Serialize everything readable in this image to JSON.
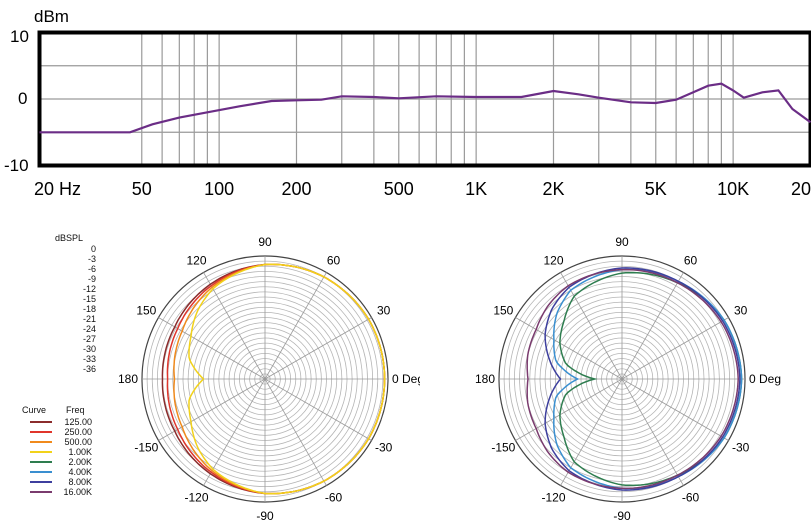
{
  "frequency_response": {
    "unit_label": "dBm",
    "y_ticks": [
      "10",
      "0",
      "-10"
    ],
    "x_ticks": [
      "20  Hz",
      "50",
      "100",
      "200",
      "500",
      "1K",
      "2K",
      "5K",
      "10K",
      "20"
    ]
  },
  "polar": {
    "db_title": "dBSPL",
    "db_scale": [
      "0",
      "-3",
      "-6",
      "-9",
      "-12",
      "-15",
      "-18",
      "-21",
      "-24",
      "-27",
      "-30",
      "-33",
      "-36"
    ],
    "angle_labels": {
      "a90": "90",
      "a60": "60",
      "a30": "30",
      "a0": "0 Deg",
      "am30": "-30",
      "am60": "-60",
      "am90": "-90",
      "am120": "-120",
      "am150": "-150",
      "a180": "180",
      "a150": "150",
      "a120": "120"
    }
  },
  "legend": {
    "curve_header": "Curve",
    "freq_header": "Freq",
    "items": [
      {
        "freq": "125.00",
        "color": "#8b2c2c"
      },
      {
        "freq": "250.00",
        "color": "#e0352b"
      },
      {
        "freq": "500.00",
        "color": "#f08a1c"
      },
      {
        "freq": "1.00K",
        "color": "#f2d21a"
      },
      {
        "freq": "2.00K",
        "color": "#2e7d4f"
      },
      {
        "freq": "4.00K",
        "color": "#3a8fd0"
      },
      {
        "freq": "8.00K",
        "color": "#3d3f9e"
      },
      {
        "freq": "16.00K",
        "color": "#7a3b6e"
      }
    ]
  },
  "chart_data": [
    {
      "type": "line",
      "ylabel": "dBm",
      "xscale": "log",
      "xlim": [
        20,
        20000
      ],
      "ylim": [
        -10,
        10
      ],
      "grid": true,
      "series": [
        {
          "color": "#6b2d86",
          "x": [
            20,
            30,
            45,
            55,
            70,
            90,
            120,
            160,
            200,
            250,
            300,
            400,
            500,
            700,
            1000,
            1500,
            2000,
            2500,
            3000,
            4000,
            5000,
            6000,
            7000,
            8000,
            9000,
            10000,
            11000,
            13000,
            15000,
            17000,
            20000
          ],
          "y": [
            -5,
            -5,
            -5,
            -3.8,
            -2.8,
            -2,
            -1.1,
            -0.3,
            -0.2,
            -0.1,
            0.4,
            0.3,
            0.1,
            0.4,
            0.3,
            0.3,
            1.2,
            0.7,
            0.2,
            -0.5,
            -0.6,
            -0.1,
            1,
            2,
            2.3,
            1.3,
            0.2,
            1,
            1.3,
            -1.5,
            -3.5
          ]
        }
      ]
    },
    {
      "type": "polar",
      "r_range_db": [
        -36,
        0
      ],
      "angle_range_deg": [
        -180,
        180
      ],
      "series": [
        {
          "name": "125.00",
          "color": "#8b2c2c",
          "angles": [
            0,
            30,
            60,
            90,
            120,
            150,
            180,
            -150,
            -120,
            -90,
            -60,
            -30
          ],
          "db": [
            -1,
            -1,
            -1.5,
            -2.5,
            -4,
            -5.5,
            -6,
            -5.5,
            -4,
            -2.5,
            -1.5,
            -1
          ]
        },
        {
          "name": "250.00",
          "color": "#e0352b",
          "angles": [
            0,
            30,
            60,
            90,
            120,
            150,
            180,
            -150,
            -120,
            -90,
            -60,
            -30
          ],
          "db": [
            -1,
            -1,
            -1.5,
            -2.5,
            -4.5,
            -6.5,
            -7.5,
            -6.5,
            -4.5,
            -2.5,
            -1.5,
            -1
          ]
        },
        {
          "name": "500.00",
          "color": "#f08a1c",
          "angles": [
            0,
            30,
            60,
            90,
            120,
            150,
            180,
            -150,
            -120,
            -90,
            -60,
            -30
          ],
          "db": [
            -1,
            -1,
            -1.5,
            -2.5,
            -5,
            -8,
            -9.5,
            -8,
            -5,
            -2.5,
            -1.5,
            -1
          ]
        },
        {
          "name": "1.00K",
          "color": "#f2d21a",
          "angles": [
            0,
            30,
            60,
            90,
            120,
            135,
            150,
            165,
            180,
            -165,
            -150,
            -135,
            -120,
            -90,
            -60,
            -30
          ],
          "db": [
            -1,
            -1,
            -1.5,
            -2.5,
            -5.5,
            -8,
            -11,
            -13,
            -18,
            -13,
            -11,
            -8,
            -5.5,
            -2.5,
            -1.5,
            -1
          ]
        }
      ]
    },
    {
      "type": "polar",
      "r_range_db": [
        -36,
        0
      ],
      "angle_range_deg": [
        -180,
        180
      ],
      "series": [
        {
          "name": "2.00K",
          "color": "#2e7d4f",
          "angles": [
            0,
            30,
            60,
            90,
            120,
            135,
            150,
            165,
            180,
            -165,
            -150,
            -135,
            -120,
            -90,
            -60,
            -30
          ],
          "db": [
            -1,
            -1.5,
            -3.5,
            -5,
            -8,
            -12,
            -15,
            -19,
            -28,
            -19,
            -15,
            -12,
            -8,
            -5,
            -3.5,
            -1.5
          ]
        },
        {
          "name": "4.00K",
          "color": "#3a8fd0",
          "angles": [
            0,
            30,
            60,
            90,
            120,
            135,
            150,
            165,
            180,
            -165,
            -150,
            -135,
            -120,
            -90,
            -60,
            -30
          ],
          "db": [
            -1,
            -1.5,
            -3,
            -4,
            -6,
            -9,
            -13,
            -16,
            -23,
            -16,
            -13,
            -9,
            -6,
            -4,
            -3,
            -1.5
          ]
        },
        {
          "name": "8.00K",
          "color": "#3d3f9e",
          "angles": [
            0,
            30,
            60,
            90,
            120,
            135,
            150,
            165,
            180,
            -165,
            -150,
            -135,
            -120,
            -90,
            -60,
            -30
          ],
          "db": [
            -1.5,
            -2,
            -3,
            -3.5,
            -5,
            -7,
            -10,
            -14,
            -18,
            -14,
            -10,
            -7,
            -5,
            -3.5,
            -3,
            -2
          ]
        },
        {
          "name": "16.00K",
          "color": "#7a3b6e",
          "angles": [
            0,
            30,
            60,
            90,
            120,
            135,
            150,
            165,
            180,
            -165,
            -150,
            -135,
            -120,
            -90,
            -60,
            -30
          ],
          "db": [
            -2,
            -2.5,
            -3.5,
            -4,
            -4.5,
            -5.5,
            -7,
            -7.5,
            -8.5,
            -7.5,
            -7,
            -5.5,
            -4.5,
            -4,
            -3.5,
            -2.5
          ]
        }
      ]
    }
  ]
}
